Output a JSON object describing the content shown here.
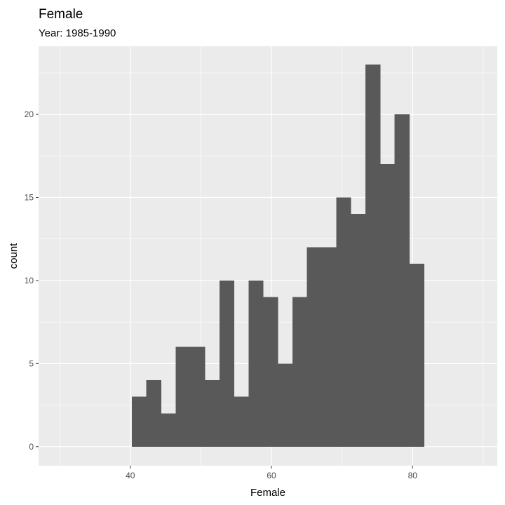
{
  "chart_data": {
    "type": "bar",
    "title": "Female",
    "subtitle": "Year: 1985-1990",
    "xlabel": "Female",
    "ylabel": "count",
    "xlim": [
      27,
      92
    ],
    "ylim": [
      -1.15,
      24.1
    ],
    "x_ticks": [
      40,
      60,
      80
    ],
    "x_tick_labels": [
      "40",
      "60",
      "80"
    ],
    "x_minor_ticks": [
      30,
      50,
      70,
      90
    ],
    "y_ticks": [
      0,
      5,
      10,
      15,
      20
    ],
    "y_tick_labels": [
      "0",
      "5",
      "10",
      "15",
      "20"
    ],
    "y_minor_ticks": [
      2.5,
      7.5,
      12.5,
      17.5,
      22.5
    ],
    "grid": true,
    "bin_width": 2.07,
    "bins_start": 40.2,
    "values": [
      3,
      4,
      2,
      6,
      6,
      4,
      10,
      3,
      10,
      9,
      5,
      9,
      12,
      12,
      15,
      14,
      23,
      17,
      20,
      11
    ],
    "colors": {
      "panel": "#ebebeb",
      "grid_major": "#ffffff",
      "bar": "#595959"
    }
  }
}
